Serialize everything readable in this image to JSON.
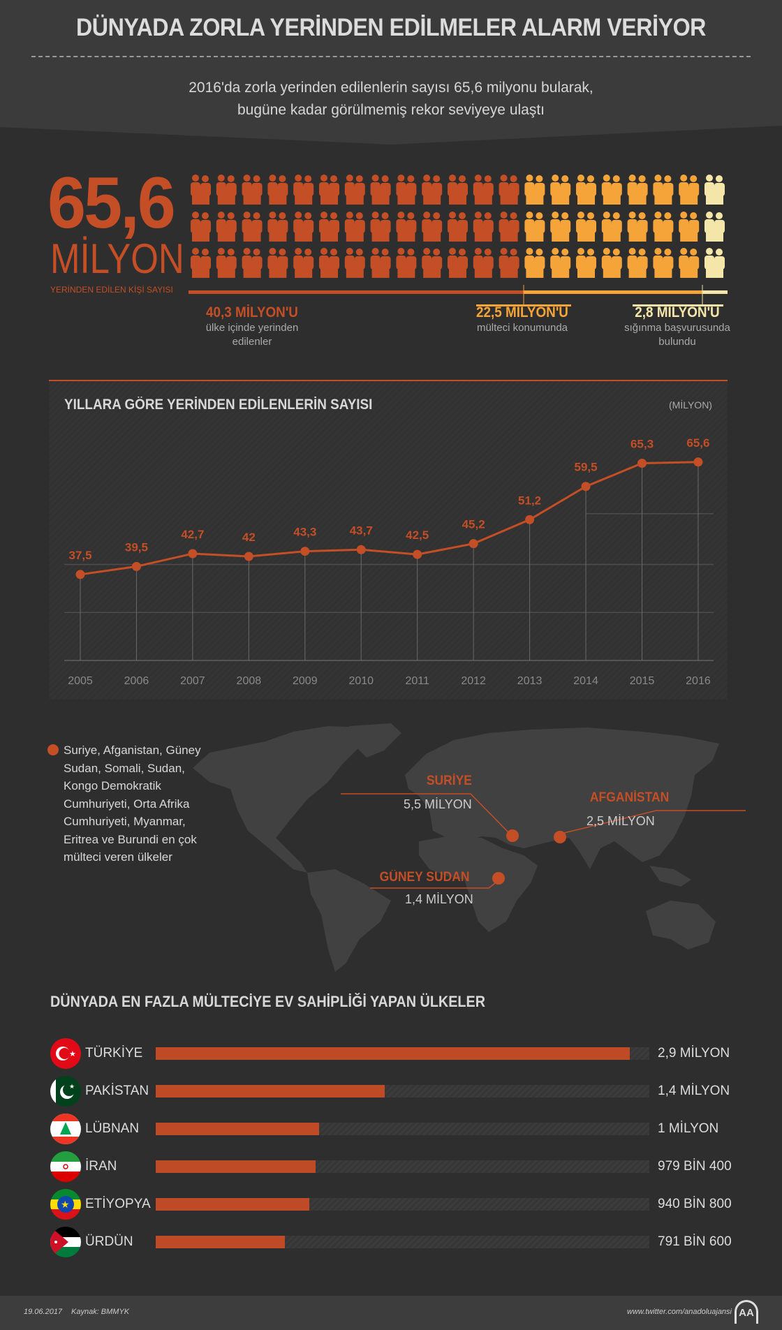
{
  "header": {
    "title": "DÜNYADA ZORLA YERİNDEN EDİLMELER ALARM VERİYOR",
    "subtitle_lines": [
      "2016'da zorla yerinden edilenlerin sayısı 65,6 milyonu bularak,",
      "bugüne kadar görülmemiş rekor seviyeye ulaştı"
    ]
  },
  "total": {
    "value": "65,6",
    "unit": "MİLYON",
    "label": "YERİNDEN EDİLEN KİŞİ SAYISI"
  },
  "people_grid": {
    "rows": 3,
    "groups": [
      {
        "count": 13,
        "color": "#c44e25"
      },
      {
        "count": 7,
        "color": "#f5a43a"
      },
      {
        "count": 1,
        "color": "#f3e6a8"
      }
    ]
  },
  "breakdown": [
    {
      "value": "40,3 MİLYON'U",
      "desc": [
        "ülke içinde yerinden",
        "edilenler"
      ],
      "color": "#c44e25"
    },
    {
      "value": "22,5 MİLYON'U",
      "desc": [
        "mülteci konumunda"
      ],
      "color": "#f5a43a"
    },
    {
      "value": "2,8 MİLYON'U",
      "desc": [
        "sığınma başvurusunda",
        "bulundu"
      ],
      "color": "#f3e6a8"
    }
  ],
  "chart_data": {
    "type": "line",
    "title": "YILLARA GÖRE YERİNDEN EDİLENLERİN SAYISI",
    "unit": "(MİLYON)",
    "categories": [
      "2005",
      "2006",
      "2007",
      "2008",
      "2009",
      "2010",
      "2011",
      "2012",
      "2013",
      "2014",
      "2015",
      "2016"
    ],
    "values": [
      37.5,
      39.5,
      42.7,
      42,
      43.3,
      43.7,
      42.5,
      45.2,
      51.2,
      59.5,
      65.3,
      65.6
    ],
    "labels": [
      "37,5",
      "39,5",
      "42,7",
      "42",
      "43,3",
      "43,7",
      "42,5",
      "45,2",
      "51,2",
      "59,5",
      "65,3",
      "65,6"
    ],
    "ylim": [
      16,
      70
    ],
    "grid": true,
    "color": "#c44e25"
  },
  "map": {
    "note": "Suriye, Afganistan, Güney Sudan, Somali, Sudan, Kongo Demokratik Cumhuriyeti, Orta Afrika Cumhuriyeti, Myanmar, Eritrea ve Burundi en çok mülteci veren ülkeler",
    "locations": [
      {
        "name": "SURİYE",
        "value": "5,5 MİLYON"
      },
      {
        "name": "AFGANİSTAN",
        "value": "2,5 MİLYON"
      },
      {
        "name": "GÜNEY SUDAN",
        "value": "1,4 MİLYON"
      }
    ]
  },
  "hosts": {
    "title": "DÜNYADA EN FAZLA MÜLTECİYE EV SAHİPLİĞİ YAPAN ÜLKELER",
    "scale_max_million": 3.02,
    "rows": [
      {
        "country": "TÜRKİYE",
        "value": "2,9 MİLYON",
        "million": 2.9,
        "flag": "turkey-flag-icon"
      },
      {
        "country": "PAKİSTAN",
        "value": "1,4 MİLYON",
        "million": 1.4,
        "flag": "pakistan-flag-icon"
      },
      {
        "country": "LÜBNAN",
        "value": "1 MİLYON",
        "million": 1.0,
        "flag": "lebanon-flag-icon"
      },
      {
        "country": "İRAN",
        "value": "979 BİN 400",
        "million": 0.9794,
        "flag": "iran-flag-icon"
      },
      {
        "country": "ETİYOPYA",
        "value": "940 BİN 800",
        "million": 0.9408,
        "flag": "ethiopia-flag-icon"
      },
      {
        "country": "ÜRDÜN",
        "value": "791 BİN 600",
        "million": 0.7916,
        "flag": "jordan-flag-icon"
      }
    ]
  },
  "footer": {
    "date": "19.06.2017",
    "source": "Kaynak: BMMYK",
    "twitter": "www.twitter.com/anadoluajansi",
    "logo": "AA"
  }
}
